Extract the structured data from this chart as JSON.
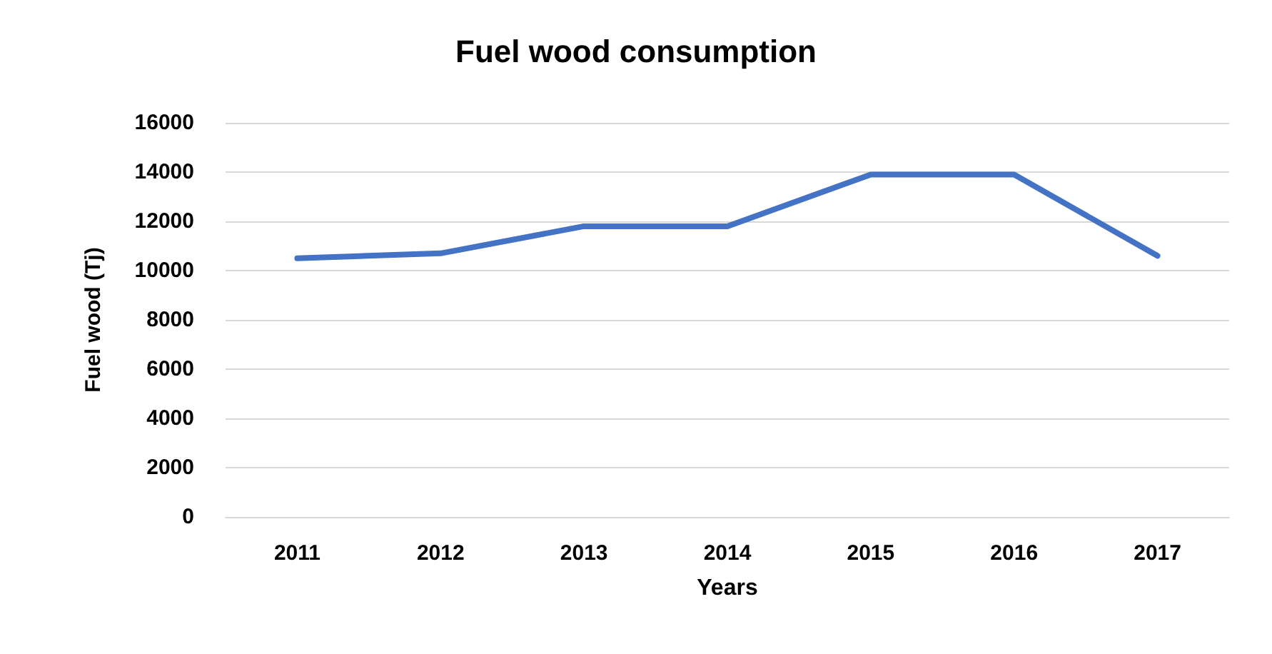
{
  "chart_data": {
    "type": "line",
    "title": "Fuel wood consumption",
    "xlabel": "Years",
    "ylabel": "Fuel wood (Tj)",
    "categories": [
      "2011",
      "2012",
      "2013",
      "2014",
      "2015",
      "2016",
      "2017"
    ],
    "series": [
      {
        "color": "#4472c4",
        "values": [
          10500,
          10700,
          11800,
          11800,
          13900,
          13900,
          10600
        ]
      }
    ],
    "ylim": [
      0,
      16000
    ],
    "yticks": [
      0,
      2000,
      4000,
      6000,
      8000,
      10000,
      12000,
      14000,
      16000
    ],
    "grid": "y",
    "marker": "none",
    "line_style": "solid"
  }
}
